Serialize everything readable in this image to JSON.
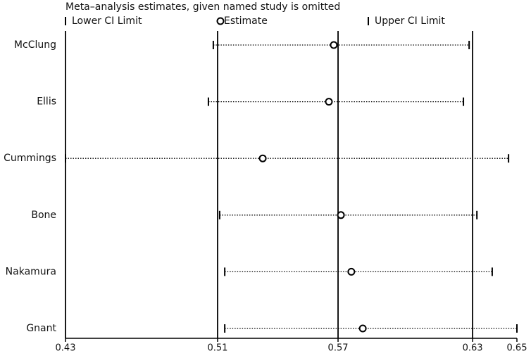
{
  "chart_data": {
    "type": "forest",
    "title": "Meta–analysis estimates, given named study is omitted",
    "categories": [
      "McClung",
      "Ellis",
      "Cummings",
      "Bone",
      "Nakamura",
      "Gnant"
    ],
    "series": [
      {
        "name": "Lower CI Limit",
        "color": "#000000",
        "values": [
          0.5044,
          0.502,
          0.432,
          0.5075,
          0.51,
          0.51
        ]
      },
      {
        "name": "Estimate",
        "color": "#000000",
        "values": [
          0.5634,
          0.561,
          0.5286,
          0.5669,
          0.572,
          0.5776
        ]
      },
      {
        "name": "Upper CI Limit",
        "color": "#000000",
        "values": [
          0.6297,
          0.6269,
          0.649,
          0.6335,
          0.641,
          0.6531
        ]
      }
    ],
    "xlim": [
      0.432,
      0.6531
    ],
    "xticks": [
      {
        "value": 0.432,
        "label": "0.43"
      },
      {
        "value": 0.5065,
        "label": "0.51"
      },
      {
        "value": 0.5655,
        "label": "0.57"
      },
      {
        "value": 0.6314,
        "label": "0.63"
      },
      {
        "value": 0.6531,
        "label": "0.65"
      }
    ]
  }
}
